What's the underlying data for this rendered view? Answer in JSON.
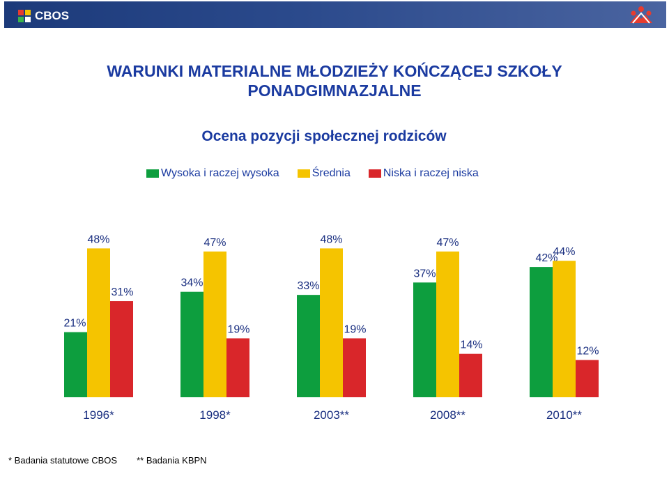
{
  "header": {
    "brand": "CBOS"
  },
  "title_line1": "WARUNKI MATERIALNE MŁODZIEŻY KOŃCZĄCEJ SZKOŁY",
  "title_line2": "PONADGIMNAZJALNE",
  "subtitle": "Ocena pozycji społecznej rodziców",
  "legend": [
    {
      "label": "Wysoka i raczej wysoka",
      "color": "#0d9e3e"
    },
    {
      "label": "Średnia",
      "color": "#f5c400"
    },
    {
      "label": "Niska i raczej niska",
      "color": "#d9262a"
    }
  ],
  "footnotes": [
    "* Badania statutowe CBOS",
    "** Badania KBPN"
  ],
  "chart_data": {
    "type": "bar",
    "categories": [
      "1996*",
      "1998*",
      "2003**",
      "2008**",
      "2010**"
    ],
    "series": [
      {
        "name": "Wysoka i raczej wysoka",
        "values": [
          21,
          34,
          33,
          37,
          42
        ],
        "color": "#0d9e3e"
      },
      {
        "name": "Średnia",
        "values": [
          48,
          47,
          48,
          47,
          44
        ],
        "color": "#f5c400"
      },
      {
        "name": "Niska i raczej niska",
        "values": [
          31,
          19,
          19,
          14,
          12
        ],
        "color": "#d9262a"
      }
    ],
    "value_suffix": "%",
    "ylim": [
      0,
      50
    ],
    "grid": false,
    "legend_position": "top"
  }
}
